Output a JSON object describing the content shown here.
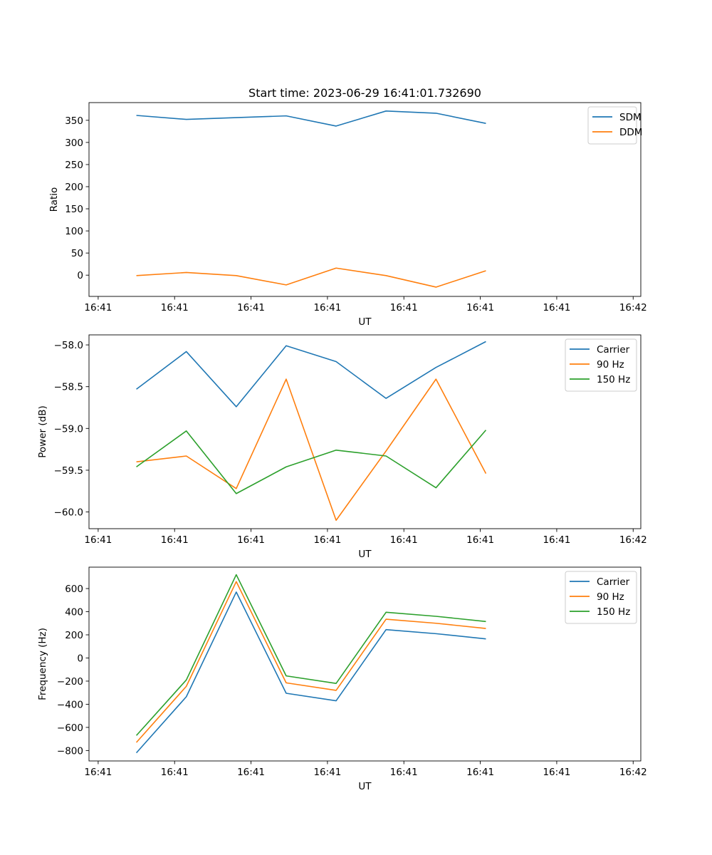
{
  "chart_data": [
    {
      "type": "line",
      "title": "Start time: 2023-06-29 16:41:01.732690",
      "xlabel": "UT",
      "ylabel": "Ratio",
      "x_tick_labels": [
        "16:41",
        "16:41",
        "16:41",
        "16:41",
        "16:41",
        "16:41",
        "16:41",
        "16:42"
      ],
      "x_ticks": [
        0,
        1.5,
        3,
        4.5,
        6,
        7.5,
        9,
        10.5
      ],
      "xlim": [
        -0.18,
        10.65
      ],
      "x": [
        0.75,
        1.73,
        2.71,
        3.69,
        4.67,
        5.65,
        6.63,
        7.61
      ],
      "ylim": [
        -48,
        390
      ],
      "y_ticks": [
        0,
        50,
        100,
        150,
        200,
        250,
        300,
        350
      ],
      "legend": "top-right",
      "series": [
        {
          "name": "SDM",
          "color": "#1f77b4",
          "values": [
            361,
            352,
            356,
            360,
            337,
            371,
            366,
            343
          ]
        },
        {
          "name": "DDM",
          "color": "#ff7f0e",
          "values": [
            -1,
            6,
            -1,
            -22,
            16,
            -1,
            -27,
            10
          ]
        }
      ]
    },
    {
      "type": "line",
      "title": "",
      "xlabel": "UT",
      "ylabel": "Power (dB)",
      "x_tick_labels": [
        "16:41",
        "16:41",
        "16:41",
        "16:41",
        "16:41",
        "16:41",
        "16:41",
        "16:42"
      ],
      "x_ticks": [
        0,
        1.5,
        3,
        4.5,
        6,
        7.5,
        9,
        10.5
      ],
      "xlim": [
        -0.18,
        10.65
      ],
      "x": [
        0.75,
        1.73,
        2.71,
        3.69,
        4.67,
        5.65,
        6.63,
        7.61
      ],
      "ylim": [
        -60.2,
        -57.88
      ],
      "y_ticks": [
        -60.0,
        -59.5,
        -59.0,
        -58.5,
        -58.0
      ],
      "y_tick_labels": [
        "−60.0",
        "−59.5",
        "−59.0",
        "−58.5",
        "−58.0"
      ],
      "legend": "top-right",
      "series": [
        {
          "name": "Carrier",
          "color": "#1f77b4",
          "values": [
            -58.53,
            -58.08,
            -58.74,
            -58.01,
            -58.2,
            -58.64,
            -58.27,
            -57.96
          ]
        },
        {
          "name": "90 Hz",
          "color": "#ff7f0e",
          "values": [
            -59.4,
            -59.33,
            -59.72,
            -58.41,
            -60.1,
            -59.27,
            -58.41,
            -59.54
          ]
        },
        {
          "name": "150 Hz",
          "color": "#2ca02c",
          "values": [
            -59.46,
            -59.03,
            -59.78,
            -59.46,
            -59.26,
            -59.33,
            -59.71,
            -59.02
          ]
        }
      ]
    },
    {
      "type": "line",
      "title": "",
      "xlabel": "UT",
      "ylabel": "Frequency (Hz)",
      "x_tick_labels": [
        "16:41",
        "16:41",
        "16:41",
        "16:41",
        "16:41",
        "16:41",
        "16:41",
        "16:42"
      ],
      "x_ticks": [
        0,
        1.5,
        3,
        4.5,
        6,
        7.5,
        9,
        10.5
      ],
      "xlim": [
        -0.18,
        10.65
      ],
      "x": [
        0.75,
        1.73,
        2.71,
        3.69,
        4.67,
        5.65,
        6.63,
        7.61
      ],
      "ylim": [
        -890,
        785
      ],
      "y_ticks": [
        -800,
        -600,
        -400,
        -200,
        0,
        200,
        400,
        600
      ],
      "y_tick_labels": [
        "−800",
        "−600",
        "−400",
        "−200",
        "0",
        "200",
        "400",
        "600"
      ],
      "legend": "top-right",
      "series": [
        {
          "name": "Carrier",
          "color": "#1f77b4",
          "values": [
            -820,
            -335,
            570,
            -305,
            -370,
            245,
            210,
            165
          ]
        },
        {
          "name": "90 Hz",
          "color": "#ff7f0e",
          "values": [
            -730,
            -245,
            660,
            -215,
            -280,
            335,
            300,
            255
          ]
        },
        {
          "name": "150 Hz",
          "color": "#2ca02c",
          "values": [
            -670,
            -190,
            720,
            -155,
            -220,
            395,
            360,
            315
          ]
        }
      ]
    }
  ]
}
